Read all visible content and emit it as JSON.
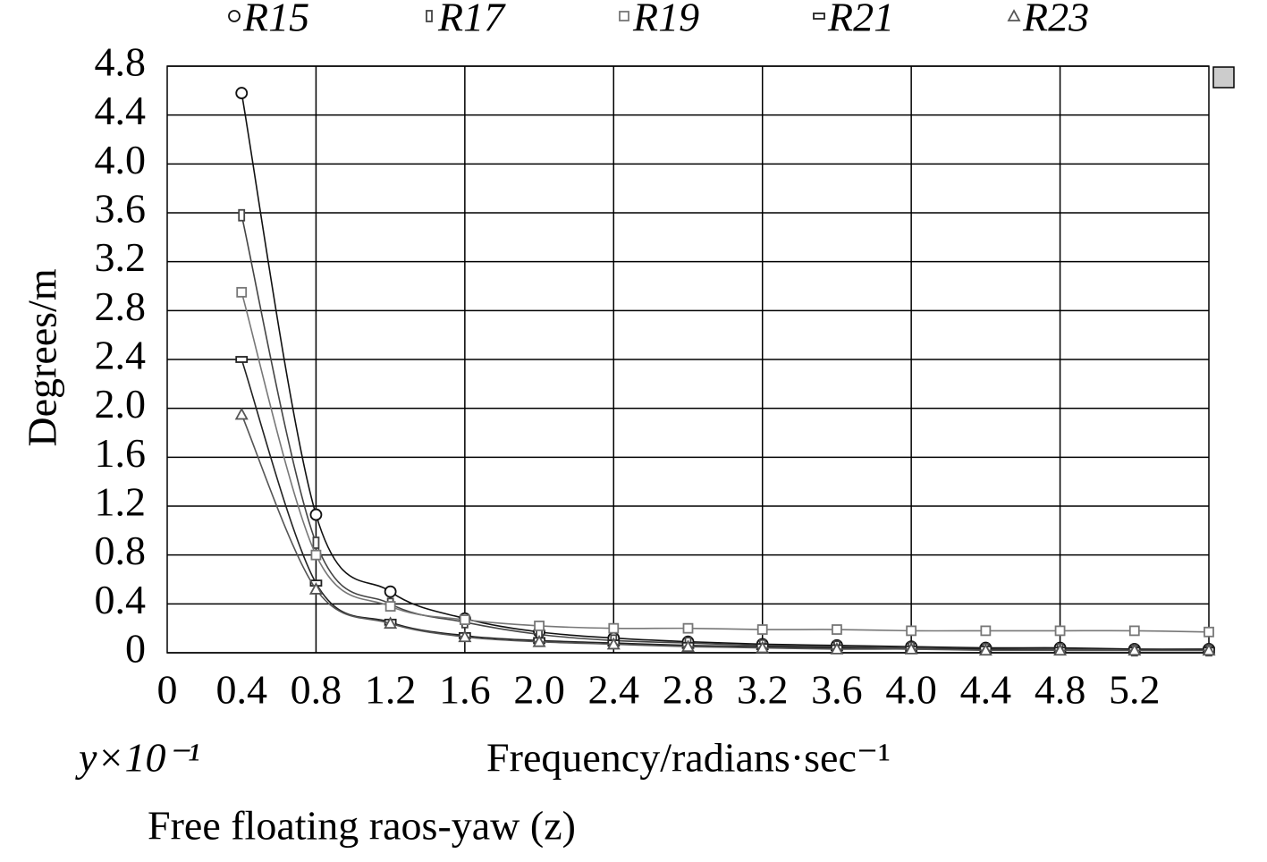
{
  "chart_data": {
    "type": "line",
    "title": "Free floating raos-yaw (z)",
    "x_label": "Frequency/radians·sec⁻¹",
    "y_label": "Degrees/m",
    "annotation": "y×10⁻¹",
    "x": [
      0.4,
      0.8,
      1.2,
      1.6,
      2.0,
      2.4,
      2.8,
      3.2,
      3.6,
      4.0,
      4.4,
      4.8,
      5.2,
      5.6
    ],
    "series": [
      {
        "name": "R15",
        "color": "#111111",
        "marker": "circle",
        "values": [
          4.58,
          1.13,
          0.5,
          0.28,
          0.17,
          0.12,
          0.09,
          0.07,
          0.06,
          0.05,
          0.04,
          0.04,
          0.03,
          0.03
        ]
      },
      {
        "name": "R17",
        "color": "#444444",
        "marker": "tall-rect",
        "values": [
          3.58,
          0.9,
          0.4,
          0.25,
          0.15,
          0.1,
          0.08,
          0.06,
          0.05,
          0.04,
          0.03,
          0.03,
          0.02,
          0.02
        ]
      },
      {
        "name": "R19",
        "color": "#777777",
        "marker": "square",
        "values": [
          2.95,
          0.8,
          0.38,
          0.27,
          0.22,
          0.2,
          0.2,
          0.19,
          0.19,
          0.18,
          0.18,
          0.18,
          0.18,
          0.17
        ]
      },
      {
        "name": "R21",
        "color": "#222222",
        "marker": "wide-rect",
        "values": [
          2.4,
          0.57,
          0.25,
          0.14,
          0.1,
          0.08,
          0.06,
          0.05,
          0.04,
          0.03,
          0.03,
          0.02,
          0.02,
          0.02
        ]
      },
      {
        "name": "R23",
        "color": "#555555",
        "marker": "triangle",
        "values": [
          1.95,
          0.52,
          0.24,
          0.13,
          0.09,
          0.07,
          0.05,
          0.04,
          0.03,
          0.03,
          0.02,
          0.02,
          0.02,
          0.02
        ]
      }
    ],
    "xlim": [
      0,
      5.6
    ],
    "ylim": [
      0,
      4.8
    ],
    "xticks": [
      0,
      0.4,
      0.8,
      1.2,
      1.6,
      {
        "value": 2,
        "label": "2.0"
      },
      2.4,
      2.8,
      3.2,
      3.6,
      {
        "value": 4,
        "label": "4.0"
      },
      4.4,
      4.8,
      5.2
    ],
    "yticks": [
      0,
      0.4,
      0.8,
      1.2,
      1.6,
      {
        "value": 2,
        "label": "2.0"
      },
      2.4,
      2.8,
      3.2,
      3.6,
      {
        "value": 4,
        "label": "4.0"
      },
      4.4,
      4.8
    ],
    "grid": true,
    "legend": "top"
  }
}
